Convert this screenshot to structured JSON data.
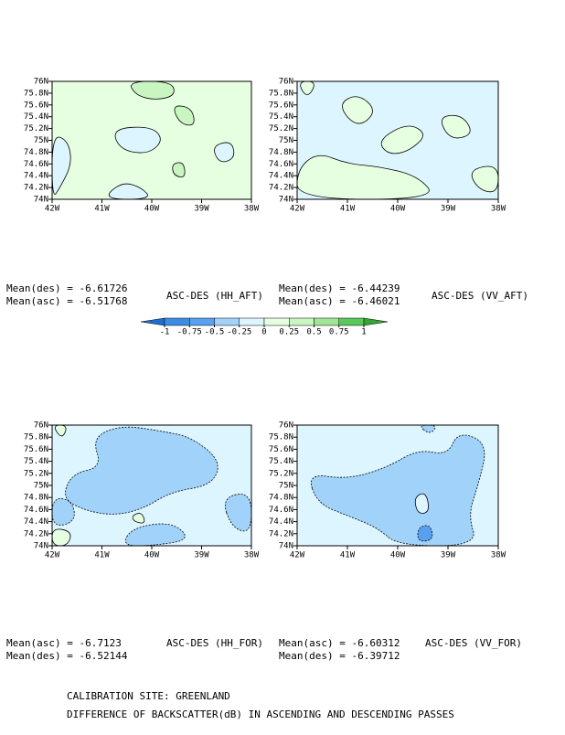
{
  "chart_data": [
    {
      "type": "contour",
      "label": "ASC-DES (HH_AFT)",
      "annotations": [
        "Mean(des) = -6.61726",
        "Mean(asc) = -6.51768"
      ],
      "xlim": [
        -42,
        -38
      ],
      "ylim": [
        74,
        76
      ],
      "xticks": [
        {
          "value": -42,
          "label": "42W"
        },
        {
          "value": -41,
          "label": "41W"
        },
        {
          "value": -40,
          "label": "40W"
        },
        {
          "value": -39,
          "label": "39W"
        },
        {
          "value": -38,
          "label": "38W"
        }
      ],
      "yticks": [
        {
          "value": 74,
          "label": "74N"
        },
        {
          "value": 74.2,
          "label": "74.2N"
        },
        {
          "value": 74.4,
          "label": "74.4N"
        },
        {
          "value": 74.6,
          "label": "74.6N"
        },
        {
          "value": 74.8,
          "label": "74.8N"
        },
        {
          "value": 75,
          "label": "75N"
        },
        {
          "value": 75.2,
          "label": "75.2N"
        },
        {
          "value": 75.4,
          "label": "75.4N"
        },
        {
          "value": 75.6,
          "label": "75.6N"
        },
        {
          "value": 75.8,
          "label": "75.8N"
        },
        {
          "value": 76,
          "label": "76N"
        }
      ]
    },
    {
      "type": "contour",
      "label": "ASC-DES (VV_AFT)",
      "annotations": [
        "Mean(des) = -6.44239",
        "Mean(asc) = -6.46021"
      ],
      "xlim": [
        -42,
        -38
      ],
      "ylim": [
        74,
        76
      ],
      "xticks": [
        {
          "value": -42,
          "label": "42W"
        },
        {
          "value": -41,
          "label": "41W"
        },
        {
          "value": -40,
          "label": "40W"
        },
        {
          "value": -39,
          "label": "39W"
        },
        {
          "value": -38,
          "label": "38W"
        }
      ],
      "yticks": [
        {
          "value": 74,
          "label": "74N"
        },
        {
          "value": 74.2,
          "label": "74.2N"
        },
        {
          "value": 74.4,
          "label": "74.4N"
        },
        {
          "value": 74.6,
          "label": "74.6N"
        },
        {
          "value": 74.8,
          "label": "74.8N"
        },
        {
          "value": 75,
          "label": "75N"
        },
        {
          "value": 75.2,
          "label": "75.2N"
        },
        {
          "value": 75.4,
          "label": "75.4N"
        },
        {
          "value": 75.6,
          "label": "75.6N"
        },
        {
          "value": 75.8,
          "label": "75.8N"
        },
        {
          "value": 76,
          "label": "76N"
        }
      ]
    },
    {
      "type": "contour",
      "label": "ASC-DES (HH_FOR)",
      "annotations": [
        "Mean(asc) = -6.7123",
        "Mean(des) = -6.52144"
      ],
      "xlim": [
        -42,
        -38
      ],
      "ylim": [
        74,
        76
      ],
      "xticks": [
        {
          "value": -42,
          "label": "42W"
        },
        {
          "value": -41,
          "label": "41W"
        },
        {
          "value": -40,
          "label": "40W"
        },
        {
          "value": -39,
          "label": "39W"
        },
        {
          "value": -38,
          "label": "38W"
        }
      ],
      "yticks": [
        {
          "value": 74,
          "label": "74N"
        },
        {
          "value": 74.2,
          "label": "74.2N"
        },
        {
          "value": 74.4,
          "label": "74.4N"
        },
        {
          "value": 74.6,
          "label": "74.6N"
        },
        {
          "value": 74.8,
          "label": "74.8N"
        },
        {
          "value": 75,
          "label": "75N"
        },
        {
          "value": 75.2,
          "label": "75.2N"
        },
        {
          "value": 75.4,
          "label": "75.4N"
        },
        {
          "value": 75.6,
          "label": "75.6N"
        },
        {
          "value": 75.8,
          "label": "75.8N"
        },
        {
          "value": 76,
          "label": "76N"
        }
      ]
    },
    {
      "type": "contour",
      "label": "ASC-DES (VV_FOR)",
      "annotations": [
        "Mean(asc) = -6.60312",
        "Mean(des) = -6.39712"
      ],
      "xlim": [
        -42,
        -38
      ],
      "ylim": [
        74,
        76
      ],
      "xticks": [
        {
          "value": -42,
          "label": "42W"
        },
        {
          "value": -41,
          "label": "41W"
        },
        {
          "value": -40,
          "label": "40W"
        },
        {
          "value": -39,
          "label": "39W"
        },
        {
          "value": -38,
          "label": "38W"
        }
      ],
      "yticks": [
        {
          "value": 74,
          "label": "74N"
        },
        {
          "value": 74.2,
          "label": "74.2N"
        },
        {
          "value": 74.4,
          "label": "74.4N"
        },
        {
          "value": 74.6,
          "label": "74.6N"
        },
        {
          "value": 74.8,
          "label": "74.8N"
        },
        {
          "value": 75,
          "label": "75N"
        },
        {
          "value": 75.2,
          "label": "75.2N"
        },
        {
          "value": 75.4,
          "label": "75.4N"
        },
        {
          "value": 75.6,
          "label": "75.6N"
        },
        {
          "value": 75.8,
          "label": "75.8N"
        },
        {
          "value": 76,
          "label": "76N"
        }
      ]
    }
  ],
  "colorbar": {
    "levels": [
      -1,
      -0.75,
      -0.5,
      -0.25,
      0,
      0.25,
      0.5,
      0.75,
      1
    ],
    "colors": [
      "#1e6ed2",
      "#3c8ce6",
      "#5aa0f0",
      "#a0d2fa",
      "#dcf5ff",
      "#e6ffe1",
      "#c8f5c0",
      "#a0e696",
      "#5ac85a",
      "#37a535"
    ]
  },
  "caption": [
    "CALIBRATION SITE: GREENLAND",
    "DIFFERENCE OF BACKSCATTER(dB) IN ASCENDING AND DESCENDING PASSES"
  ]
}
